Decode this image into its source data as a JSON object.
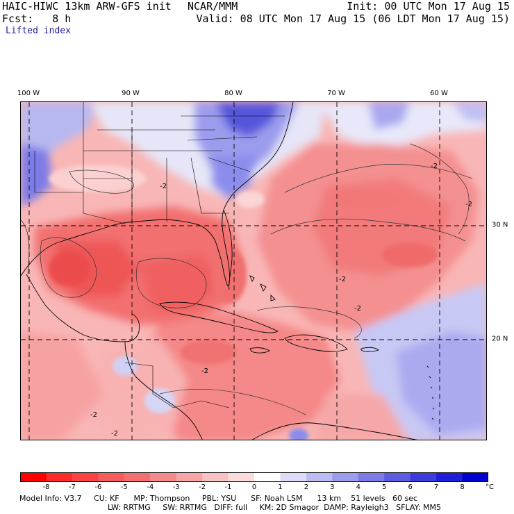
{
  "header": {
    "model_line": "HAIC-HIWC 13km ARW-GFS init",
    "org": "NCAR/MMM",
    "init": "Init: 00 UTC Mon 17 Aug 15",
    "fcst": "Fcst:   8 h",
    "valid": "Valid: 08 UTC Mon 17 Aug 15 (06 LDT Mon 17 Aug 15)",
    "field": "Lifted index"
  },
  "axes": {
    "lon_labels": [
      "100 W",
      "90 W",
      "80 W",
      "70 W",
      "60 W"
    ],
    "lat_labels": [
      "30 N",
      "20 N"
    ]
  },
  "colorbar": {
    "labels": [
      "-8",
      "-7",
      "-6",
      "-5",
      "-4",
      "-3",
      "-2",
      "-1",
      "0",
      "1",
      "2",
      "3",
      "4",
      "5",
      "6",
      "7",
      "8"
    ],
    "unit": "°C",
    "colors": [
      "#ff0000",
      "#ff2a2a",
      "#f84444",
      "#f55c5c",
      "#f47070",
      "#f58a8a",
      "#f7a5a5",
      "#f9c2c2",
      "#fbdcdc",
      "#ffffff",
      "#dcdcf8",
      "#bcbcf2",
      "#9c9cee",
      "#7c7ce8",
      "#5c5ce2",
      "#3c3cdc",
      "#1e1ed8",
      "#0000d0"
    ]
  },
  "map": {
    "contour_labels": [
      "-2",
      "-2",
      "-2",
      "-2",
      "-2",
      "-2",
      "-2",
      "-2"
    ],
    "palette": {
      "strong_red": "#f06262",
      "red": "#f58080",
      "mid_red": "#f7a0a0",
      "pink": "#fbc8c8",
      "white": "#f5f5fb",
      "light_blue": "#c8c8f5",
      "blue": "#8c8cec",
      "dark_blue": "#5050dc"
    }
  },
  "model_info": {
    "line1": "Model Info: V3.7     CU: KF      MP: Thompson     PBL: YSU      SF: Noah LSM      13 km    51 levels   60 sec",
    "line2": "LW: RRTMG     SW: RRTMG   DIFF: full     KM: 2D Smagor  DAMP: Rayleigh3   SFLAY: MM5"
  }
}
